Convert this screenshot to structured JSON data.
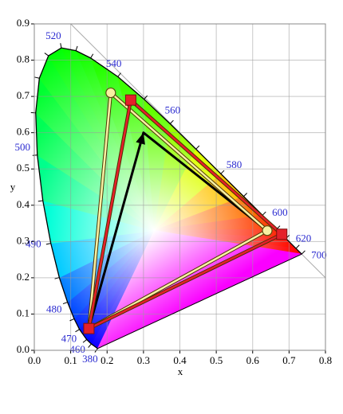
{
  "chart_data": {
    "type": "chromaticity",
    "xlabel": "x",
    "ylabel": "y",
    "xlim": [
      0,
      0.8
    ],
    "ylim": [
      0,
      0.9
    ],
    "xticks": [
      {
        "value": 0,
        "label": "0.0"
      },
      0.1,
      0.2,
      0.3,
      0.4,
      0.5,
      0.6,
      0.7,
      {
        "value": 0.8,
        "label": "0.8"
      }
    ],
    "yticks": [
      {
        "value": 0,
        "label": "0.0"
      },
      0.1,
      0.2,
      0.3,
      0.4,
      0.5,
      0.6,
      0.7,
      0.8,
      0.9
    ],
    "grid": true,
    "locus": {
      "labels": [
        380,
        null,
        460,
        470,
        null,
        480,
        null,
        490,
        null,
        500,
        null,
        null,
        null,
        520,
        null,
        null,
        540,
        null,
        560,
        null,
        580,
        null,
        600,
        null,
        620,
        null,
        700
      ],
      "x": [
        0.1741,
        0.1566,
        0.144,
        0.1241,
        0.1096,
        0.0913,
        0.0687,
        0.0454,
        0.0235,
        0.0082,
        0.0039,
        0.0139,
        0.0389,
        0.0743,
        0.1142,
        0.1547,
        0.2296,
        0.3016,
        0.3731,
        0.4441,
        0.5125,
        0.5752,
        0.627,
        0.6658,
        0.6915,
        0.719,
        0.7347
      ],
      "y": [
        0.005,
        0.0177,
        0.0297,
        0.0578,
        0.0868,
        0.1327,
        0.2007,
        0.295,
        0.4127,
        0.5384,
        0.6548,
        0.7502,
        0.812,
        0.8338,
        0.8262,
        0.8059,
        0.7543,
        0.6923,
        0.6245,
        0.5547,
        0.4866,
        0.4242,
        0.3725,
        0.334,
        0.3083,
        0.2809,
        0.2653
      ],
      "label_color": "#2b2bd0"
    },
    "gamuts": [
      {
        "color": "#000000",
        "marker": "arrow",
        "x": [
          0.15,
          0.3,
          0.64
        ],
        "y": [
          0.06,
          0.6,
          0.33
        ]
      },
      {
        "color": "#f7f0a2",
        "marker": "circle",
        "x": [
          0.21,
          0.64,
          0.15
        ],
        "y": [
          0.71,
          0.33,
          0.06
        ]
      },
      {
        "color": "#e4202a",
        "marker": "square",
        "x": [
          0.265,
          0.68,
          0.15
        ],
        "y": [
          0.69,
          0.32,
          0.06
        ]
      }
    ]
  }
}
